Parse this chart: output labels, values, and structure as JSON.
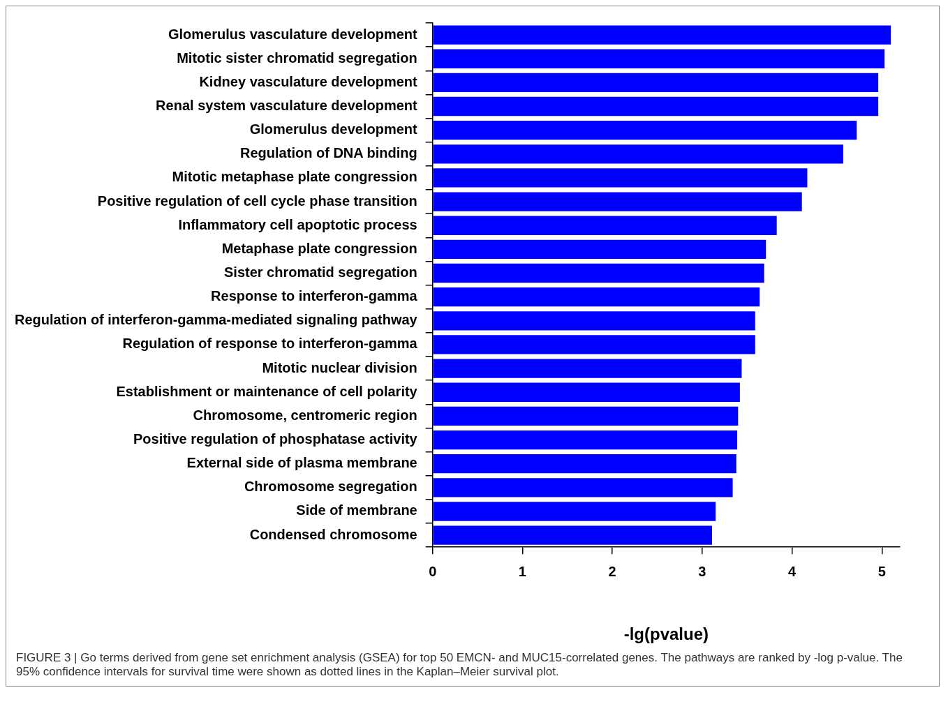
{
  "chart_data": {
    "type": "bar",
    "orientation": "horizontal",
    "xlabel": "-lg(pvalue)",
    "categories": [
      "Glomerulus vasculature development",
      "Mitotic sister chromatid segregation",
      "Kidney vasculature development",
      "Renal system vasculature development",
      "Glomerulus development",
      "Regulation of DNA binding",
      "Mitotic metaphase plate congression",
      "Positive regulation of cell cycle phase transition",
      "Inflammatory cell apoptotic process",
      "Metaphase plate congression",
      "Sister chromatid segregation",
      "Response to interferon-gamma",
      "Regulation of interferon-gamma-mediated signaling pathway",
      "Regulation of response to interferon-gamma",
      "Mitotic nuclear division",
      "Establishment or maintenance of cell polarity",
      "Chromosome, centromeric region",
      "Positive regulation of phosphatase activity",
      "External side of plasma membrane",
      "Chromosome segregation",
      "Side of membrane",
      "Condensed chromosome"
    ],
    "values": [
      5.1,
      5.03,
      4.96,
      4.96,
      4.72,
      4.57,
      4.17,
      4.11,
      3.83,
      3.71,
      3.69,
      3.64,
      3.59,
      3.59,
      3.44,
      3.42,
      3.4,
      3.39,
      3.38,
      3.34,
      3.15,
      3.11
    ],
    "color": "#0000ff",
    "xlim": [
      0,
      5.2
    ],
    "xticks": [
      0,
      1,
      2,
      3,
      4,
      5
    ],
    "grid": false,
    "legend": false,
    "annotations": [
      "FIGURE 3 | Go terms derived from gene set enrichment analysis (GSEA) for top 50 EMCN- and MUC15-correlated genes. The pathways are ranked by -log p-value. The 95% confidence intervals for survival time were shown as dotted lines in the Kaplan–Meier survival plot."
    ]
  }
}
